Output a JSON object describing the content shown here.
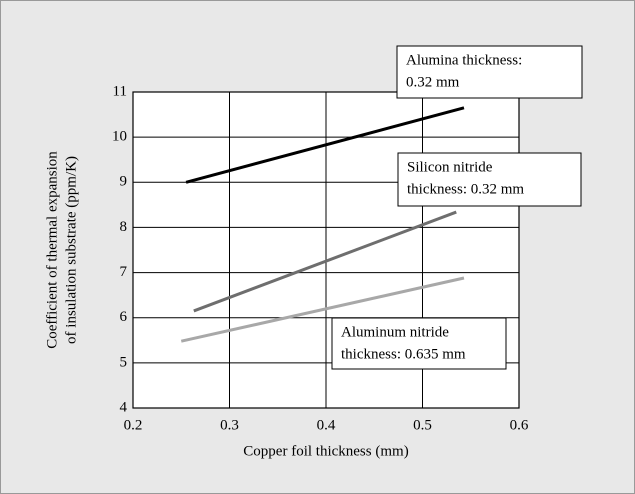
{
  "chart_data": {
    "type": "line",
    "xlabel": "Copper foil thickness (mm)",
    "ylabel": [
      "Coefficient of thermal expansion",
      "of insulation substrate (ppm/K)"
    ],
    "xlim": [
      0.2,
      0.6
    ],
    "xticks": [
      0.2,
      0.3,
      0.4,
      0.5,
      0.6
    ],
    "ylim": [
      4,
      11
    ],
    "yticks": [
      4,
      5,
      6,
      7,
      8,
      9,
      10,
      11
    ],
    "grid": true,
    "series": [
      {
        "name": [
          "Alumina thickness:",
          "0.32 mm"
        ],
        "color": "#000000",
        "x": [
          0.255,
          0.543
        ],
        "values": [
          9.0,
          10.65
        ]
      },
      {
        "name": [
          "Silicon nitride",
          "thickness: 0.32 mm"
        ],
        "color": "#6e6e6e",
        "x": [
          0.263,
          0.535
        ],
        "values": [
          6.15,
          8.34
        ]
      },
      {
        "name": [
          "Aluminum nitride",
          "thickness: 0.635 mm"
        ],
        "color": "#a8a8a8",
        "x": [
          0.25,
          0.543
        ],
        "values": [
          5.48,
          6.88
        ]
      }
    ]
  }
}
